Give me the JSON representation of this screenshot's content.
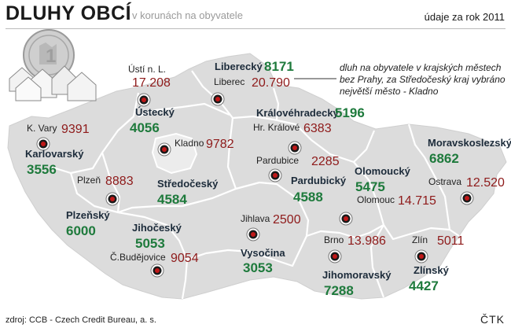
{
  "title": "DLUHY OBCÍ",
  "subtitle": "v korunách na obyvatele",
  "year": "údaje za rok 2011",
  "note": "dluh na obyvatele v krajských městech bez Prahy, za Středočeský kraj vybráno největší město - Kladno",
  "source": "zdroj: CCB - Czech Credit Bureau, a. s.",
  "agency": "ČTK",
  "colors": {
    "region_value": "#1e7a3c",
    "city_value": "#8e1a1a",
    "map_fill": "#dcdcdc",
    "map_border": "#ffffff"
  },
  "regions": [
    {
      "name": "Liberecký",
      "value": "8171"
    },
    {
      "name": "Ústecký",
      "value": "4056"
    },
    {
      "name": "Královéhradecký",
      "value": "5196"
    },
    {
      "name": "Karlovarský",
      "value": "3556"
    },
    {
      "name": "Středočeský",
      "value": "4584"
    },
    {
      "name": "Pardubický",
      "value": "4588"
    },
    {
      "name": "Moravskoslezský",
      "value": "6862"
    },
    {
      "name": "Olomoucký",
      "value": "5475"
    },
    {
      "name": "Plzeňský",
      "value": "6000"
    },
    {
      "name": "Jihočeský",
      "value": "5053"
    },
    {
      "name": "Vysočina",
      "value": "3053"
    },
    {
      "name": "Jihomoravský",
      "value": "7288"
    },
    {
      "name": "Zlínský",
      "value": "4427"
    }
  ],
  "cities": [
    {
      "name": "Ústí n. L.",
      "value": "17.208"
    },
    {
      "name": "Liberec",
      "value": "20.790"
    },
    {
      "name": "K. Vary",
      "value": "9391"
    },
    {
      "name": "Hr. Králové",
      "value": "6383"
    },
    {
      "name": "Kladno",
      "value": "9782"
    },
    {
      "name": "Pardubice",
      "value": "2285"
    },
    {
      "name": "Plzeň",
      "value": "8883"
    },
    {
      "name": "Olomouc",
      "value": "14.715"
    },
    {
      "name": "Ostrava",
      "value": "12.520"
    },
    {
      "name": "Jihlava",
      "value": "2500"
    },
    {
      "name": "Č.Budějovice",
      "value": "9054"
    },
    {
      "name": "Brno",
      "value": "13.986"
    },
    {
      "name": "Zlín",
      "value": "5011"
    }
  ]
}
